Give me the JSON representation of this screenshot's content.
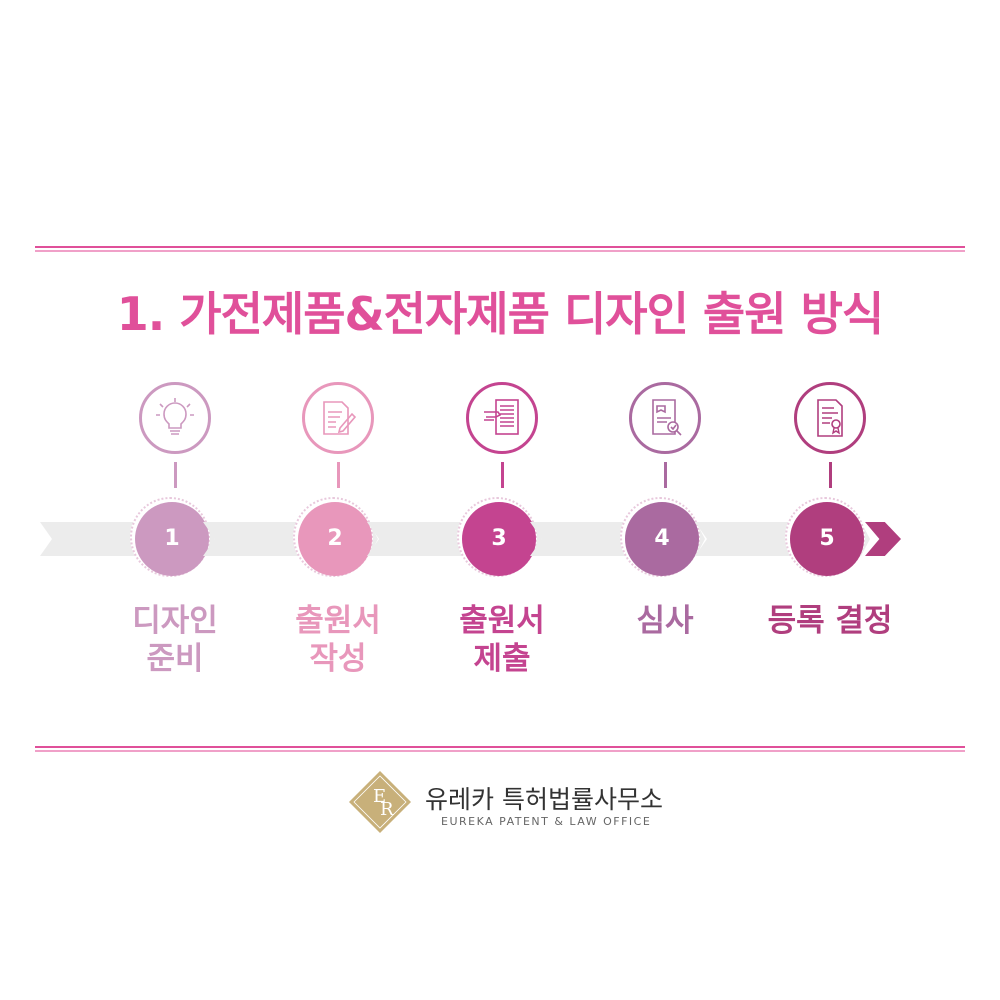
{
  "title": "1. 가전제품&전자제품 디자인 출원 방식",
  "steps": [
    {
      "number": "1",
      "label": "디자인\n준비",
      "icon": "lightbulb-icon",
      "color": "#cc99c0"
    },
    {
      "number": "2",
      "label": "출원서\n작성",
      "icon": "document-pen-icon",
      "color": "#e897bb"
    },
    {
      "number": "3",
      "label": "출원서\n제출",
      "icon": "hand-document-icon",
      "color": "#c44490"
    },
    {
      "number": "4",
      "label": "심사",
      "icon": "document-search-icon",
      "color": "#aa6aa0"
    },
    {
      "number": "5",
      "label": "등록 결정",
      "icon": "certificate-icon",
      "color": "#b03e7e"
    }
  ],
  "footer": {
    "logo_letters": "ER",
    "name_ko": "유레카 특허법률사무소",
    "name_en": "EUREKA PATENT & LAW OFFICE",
    "logo_color": "#c8b07a"
  },
  "colors": {
    "title": "#e0509a",
    "band": "#ececec"
  }
}
